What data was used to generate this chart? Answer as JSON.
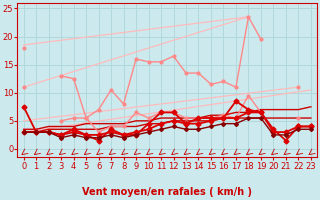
{
  "xlabel": "Vent moyen/en rafales ( km/h )",
  "xlim": [
    -0.5,
    23.5
  ],
  "ylim": [
    -1.5,
    26
  ],
  "yticks": [
    0,
    5,
    10,
    15,
    20,
    25
  ],
  "xticks": [
    0,
    1,
    2,
    3,
    4,
    5,
    6,
    7,
    8,
    9,
    10,
    11,
    12,
    13,
    14,
    15,
    16,
    17,
    18,
    19,
    20,
    21,
    22,
    23
  ],
  "bg_color": "#cce9ee",
  "grid_color": "#aacccc",
  "series": [
    {
      "y": [
        18.5,
        null,
        null,
        null,
        null,
        null,
        null,
        null,
        null,
        null,
        null,
        null,
        null,
        null,
        null,
        null,
        null,
        null,
        23.5,
        null,
        null,
        null,
        null,
        null
      ],
      "color": "#ffaaaa",
      "lw": 1.0,
      "marker": null,
      "zorder": 2
    },
    {
      "y": [
        null,
        null,
        null,
        null,
        null,
        null,
        null,
        null,
        null,
        null,
        null,
        null,
        null,
        null,
        null,
        null,
        null,
        null,
        23.5,
        null,
        null,
        null,
        null,
        null
      ],
      "color": "#ffaaaa",
      "lw": 1.0,
      "marker": null,
      "zorder": 2
    },
    {
      "y": [
        18.0,
        null,
        null,
        13.0,
        12.5,
        5.5,
        7.0,
        10.5,
        8.0,
        16.0,
        15.5,
        15.5,
        16.5,
        13.5,
        13.5,
        11.5,
        12.0,
        11.0,
        23.5,
        19.5,
        null,
        null,
        11.0,
        null
      ],
      "color": "#ff8888",
      "lw": 1.0,
      "marker": "o",
      "markersize": 2.0,
      "zorder": 3
    },
    {
      "y": [
        11.0,
        null,
        null,
        5.0,
        5.5,
        5.5,
        3.0,
        4.0,
        4.0,
        6.5,
        5.5,
        6.5,
        6.5,
        5.5,
        5.5,
        5.5,
        6.0,
        5.5,
        9.5,
        6.5,
        null,
        null,
        5.5,
        null
      ],
      "color": "#ff8888",
      "lw": 1.0,
      "marker": "o",
      "markersize": 2.0,
      "zorder": 3
    },
    {
      "y": [
        5.0,
        null,
        null,
        null,
        null,
        null,
        null,
        null,
        null,
        null,
        null,
        null,
        null,
        null,
        null,
        null,
        null,
        null,
        9.5,
        null,
        null,
        null,
        null,
        null
      ],
      "color": "#ffbbbb",
      "lw": 1.0,
      "marker": null,
      "zorder": 2
    },
    {
      "y": [
        7.5,
        3.0,
        3.0,
        2.5,
        3.5,
        2.5,
        1.5,
        3.5,
        2.5,
        2.5,
        4.5,
        6.5,
        6.5,
        4.5,
        5.5,
        5.5,
        5.5,
        8.5,
        7.0,
        6.5,
        3.5,
        1.5,
        4.0,
        4.0
      ],
      "color": "#dd0000",
      "lw": 1.3,
      "marker": "D",
      "markersize": 2.5,
      "zorder": 4
    },
    {
      "y": [
        3.0,
        3.0,
        3.0,
        2.5,
        3.0,
        2.5,
        2.5,
        3.0,
        2.5,
        3.0,
        3.5,
        4.5,
        5.0,
        4.5,
        4.5,
        5.0,
        5.5,
        5.5,
        6.5,
        6.5,
        3.0,
        3.0,
        4.0,
        4.0
      ],
      "color": "#dd0000",
      "lw": 1.3,
      "marker": "D",
      "markersize": 2.5,
      "zorder": 4
    },
    {
      "y": [
        3.0,
        3.0,
        3.0,
        2.0,
        2.5,
        2.0,
        2.0,
        2.5,
        2.0,
        2.5,
        3.0,
        3.5,
        4.0,
        3.5,
        3.5,
        4.0,
        4.5,
        4.5,
        5.5,
        5.5,
        2.5,
        2.5,
        3.5,
        3.5
      ],
      "color": "#880000",
      "lw": 1.0,
      "marker": "D",
      "markersize": 2.0,
      "zorder": 4
    },
    {
      "y": [
        3.0,
        3.0,
        3.5,
        3.5,
        3.5,
        3.5,
        3.5,
        4.0,
        4.0,
        4.0,
        4.5,
        4.5,
        5.0,
        5.0,
        5.0,
        5.0,
        5.5,
        5.5,
        5.5,
        5.5,
        5.5,
        5.5,
        5.5,
        5.5
      ],
      "color": "#cc0000",
      "lw": 1.0,
      "marker": null,
      "zorder": 2
    },
    {
      "y": [
        3.5,
        3.5,
        4.0,
        4.0,
        4.0,
        4.5,
        4.5,
        4.5,
        4.5,
        5.0,
        5.0,
        5.5,
        5.5,
        5.5,
        5.5,
        6.0,
        6.0,
        6.5,
        6.5,
        7.0,
        7.0,
        7.0,
        7.0,
        7.5
      ],
      "color": "#cc0000",
      "lw": 1.0,
      "marker": null,
      "zorder": 2
    }
  ],
  "tick_label_fontsize": 6,
  "xlabel_fontsize": 7,
  "xlabel_color": "#cc0000",
  "arrow_color": "#cc0000"
}
